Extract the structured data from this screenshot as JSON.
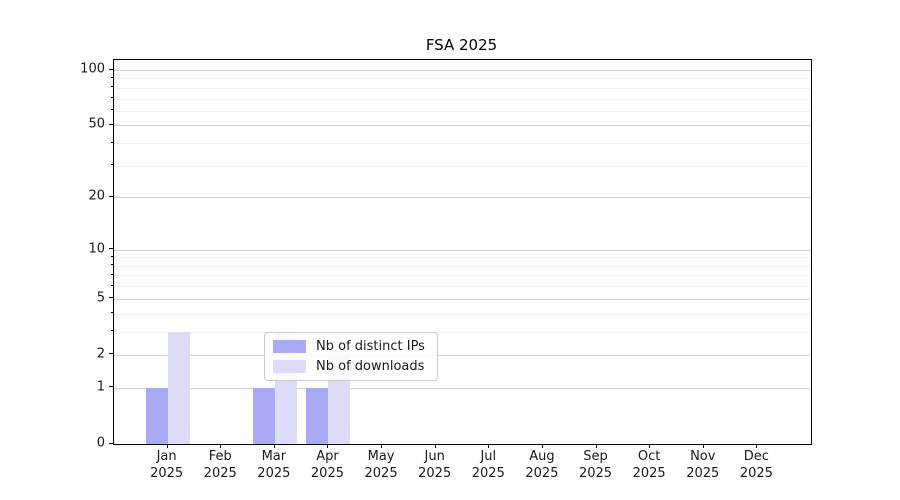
{
  "chart_data": {
    "type": "bar",
    "title": "FSA 2025",
    "categories": [
      "Jan 2025",
      "Feb 2025",
      "Mar 2025",
      "Apr 2025",
      "May 2025",
      "Jun 2025",
      "Jul 2025",
      "Aug 2025",
      "Sep 2025",
      "Oct 2025",
      "Nov 2025",
      "Dec 2025"
    ],
    "series": [
      {
        "name": "Nb of distinct IPs",
        "color": "#a9a9f5",
        "values": [
          1,
          0,
          1,
          1,
          0,
          0,
          0,
          0,
          0,
          0,
          0,
          0
        ]
      },
      {
        "name": "Nb of downloads",
        "color": "#dcdcf8",
        "values": [
          3,
          0,
          3,
          2,
          0,
          0,
          0,
          0,
          0,
          0,
          0,
          0
        ]
      }
    ],
    "xlabel": "",
    "ylabel": "",
    "y_scale": "log10(1+x)",
    "ylim": [
      0,
      114
    ],
    "y_ticks_major": [
      0,
      1,
      2,
      5,
      10,
      20,
      50,
      100
    ],
    "y_ticks_minor": [
      3,
      4,
      6,
      7,
      8,
      9,
      30,
      40,
      60,
      70,
      80,
      90
    ],
    "grid": true,
    "legend_position": "lower center"
  }
}
